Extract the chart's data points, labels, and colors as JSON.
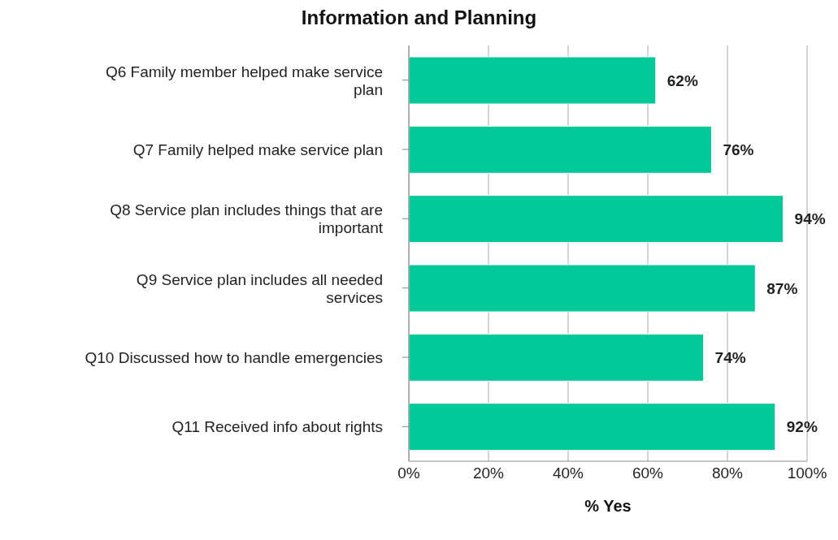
{
  "chart_data": {
    "type": "bar",
    "orientation": "horizontal",
    "title": "Information and Planning",
    "xlabel": "% Yes",
    "categories": [
      "Q6 Family member helped make service plan",
      "Q7 Family helped make service plan",
      "Q8 Service plan includes things that are important",
      "Q9 Service plan includes all needed services",
      "Q10 Discussed how to handle emergencies",
      "Q11 Received info about rights"
    ],
    "values": [
      62,
      76,
      94,
      87,
      74,
      92
    ],
    "value_labels": [
      "62%",
      "76%",
      "94%",
      "87%",
      "74%",
      "92%"
    ],
    "color": "#00c896",
    "xlim": [
      0,
      100
    ],
    "xticks": [
      {
        "value": 0,
        "label": "0%"
      },
      {
        "value": 20,
        "label": "20%"
      },
      {
        "value": 40,
        "label": "40%"
      },
      {
        "value": 60,
        "label": "60%"
      },
      {
        "value": 80,
        "label": "80%"
      },
      {
        "value": 100,
        "label": "100%"
      }
    ],
    "grid": "x",
    "legend": false
  }
}
